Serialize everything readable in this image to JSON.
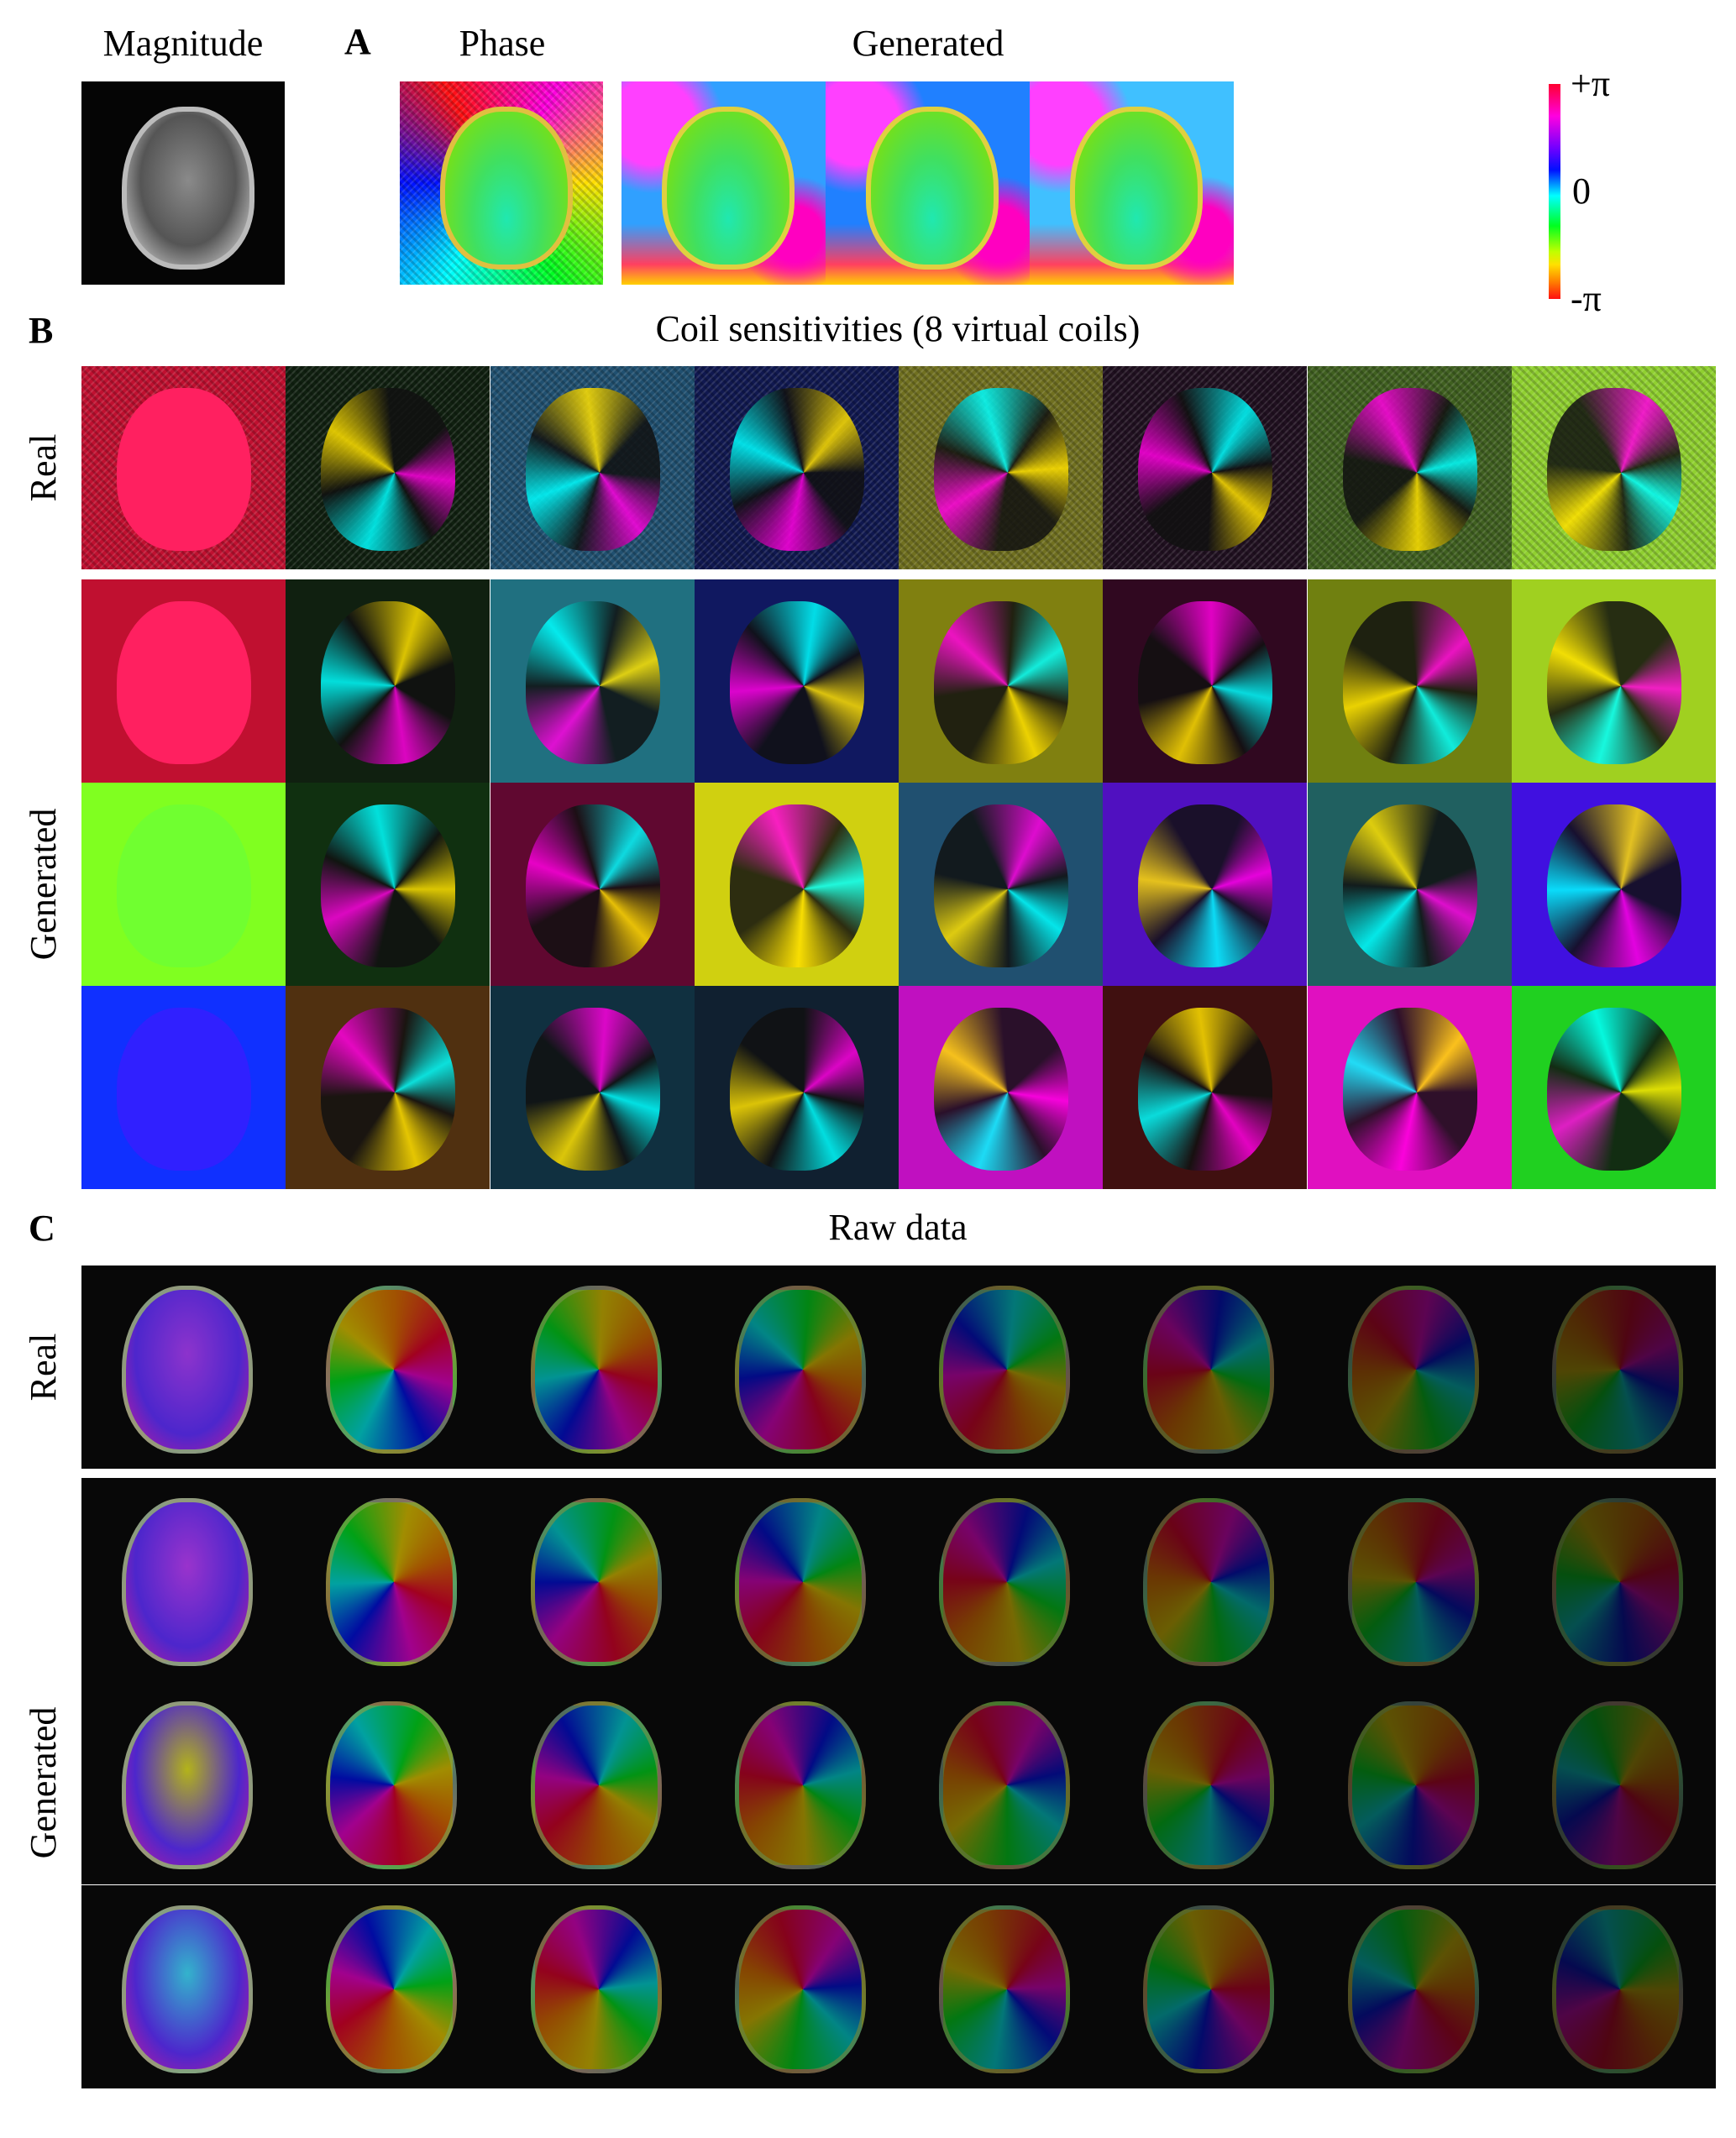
{
  "panel_a": {
    "letter": "A",
    "magnitude_label": "Magnitude",
    "phase_label": "Phase",
    "generated_label": "Generated",
    "colorbar": {
      "top": "+π",
      "middle": "0",
      "bottom": "-π"
    }
  },
  "panel_b": {
    "letter": "B",
    "title": "Coil sensitivities (8 virtual coils)",
    "real_label": "Real",
    "generated_label": "Generated"
  },
  "panel_c": {
    "letter": "C",
    "title": "Raw data",
    "real_label": "Real",
    "generated_label": "Generated"
  },
  "colormap": [
    "#ff0030",
    "#ff00e0",
    "#0010ff",
    "#00ffff",
    "#00ff20",
    "#ffe000",
    "#ff1010"
  ]
}
